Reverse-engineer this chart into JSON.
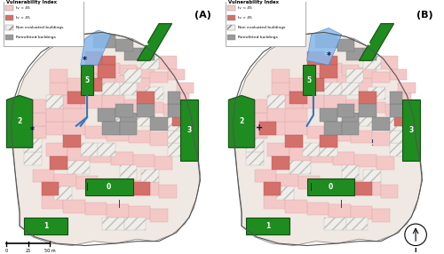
{
  "panel_labels": [
    "(A)",
    "(B)"
  ],
  "legend_title": "Vulnerability Index",
  "legend_items": [
    {
      "label": "Iv < 45",
      "color": "#f5c8c8",
      "hatch": ""
    },
    {
      "label": "Iv > 45",
      "color": "#d4706a",
      "hatch": ""
    },
    {
      "label": "Non evaluated buildings",
      "color": "#f0eeea",
      "hatch": "///"
    },
    {
      "label": "Retrofitted buildings",
      "color": "#999999",
      "hatch": ""
    }
  ],
  "green_color": "#1e8c1e",
  "blue_color": "#5599dd",
  "bg_outer": "#e8e4e0",
  "bg_city": "#f5ede8",
  "figsize": [
    5.0,
    2.86
  ],
  "dpi": 100,
  "scale_labels": [
    "0",
    "25",
    "50 m"
  ]
}
